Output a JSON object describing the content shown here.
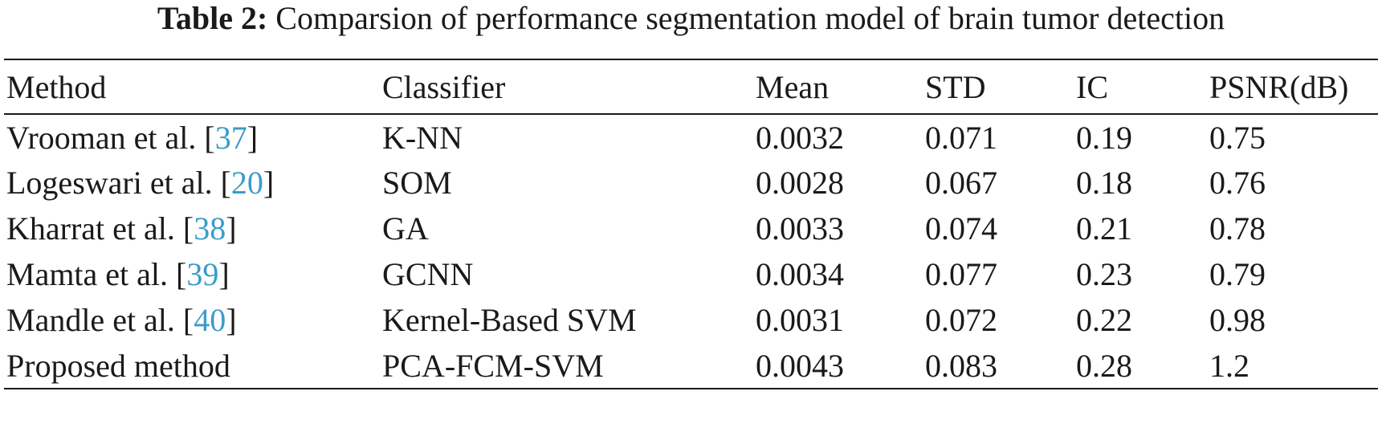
{
  "caption": {
    "label": "Table 2:",
    "text": "Comparsion of performance segmentation model of brain tumor detection"
  },
  "table": {
    "headers": [
      "Method",
      "Classifier",
      "Mean",
      "STD",
      "IC",
      "PSNR(dB)"
    ],
    "rows": [
      {
        "method": "Vrooman et al.",
        "ref": "37",
        "classifier": "K-NN",
        "mean": "0.0032",
        "std": "0.071",
        "ic": "0.19",
        "psnr": "0.75"
      },
      {
        "method": "Logeswari et al.",
        "ref": "20",
        "classifier": "SOM",
        "mean": "0.0028",
        "std": "0.067",
        "ic": "0.18",
        "psnr": "0.76"
      },
      {
        "method": "Kharrat et al.",
        "ref": "38",
        "classifier": "GA",
        "mean": "0.0033",
        "std": "0.074",
        "ic": "0.21",
        "psnr": "0.78"
      },
      {
        "method": "Mamta et al.",
        "ref": "39",
        "classifier": "GCNN",
        "mean": "0.0034",
        "std": "0.077",
        "ic": "0.23",
        "psnr": "0.79"
      },
      {
        "method": "Mandle et al.",
        "ref": "40",
        "classifier": "Kernel-Based SVM",
        "mean": "0.0031",
        "std": "0.072",
        "ic": "0.22",
        "psnr": "0.98"
      },
      {
        "method": "Proposed method",
        "ref": null,
        "classifier": "PCA-FCM-SVM",
        "mean": "0.0043",
        "std": "0.083",
        "ic": "0.28",
        "psnr": "1.2"
      }
    ]
  },
  "colors": {
    "text": "#1a1a1a",
    "citation_link": "#3a9cc8"
  }
}
